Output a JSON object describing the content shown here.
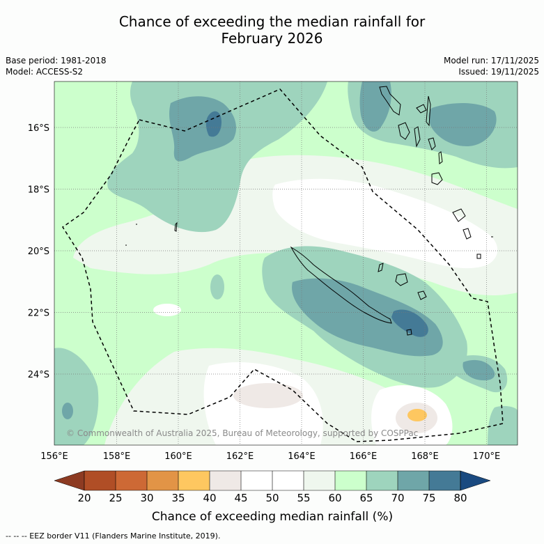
{
  "title": {
    "line1": "Chance of exceeding the median rainfall for",
    "line2": "February 2026"
  },
  "meta": {
    "base_period": "Base period: 1981-2018",
    "model": "Model: ACCESS-S2",
    "model_run": "Model run: 17/11/2025",
    "issued": "Issued: 19/11/2025"
  },
  "map": {
    "lon_labels": [
      "156°E",
      "158°E",
      "160°E",
      "162°E",
      "164°E",
      "166°E",
      "168°E",
      "170°E"
    ],
    "lat_labels": [
      "16°S",
      "18°S",
      "20°S",
      "22°S",
      "24°S"
    ],
    "credit": "© Commonwealth of Australia 2025, Bureau of Meteorology, supported by COSPPac",
    "colors": {
      "c45_50": "#ffffff",
      "c50_55": "#ffffff",
      "c55_60": "#eff7ee",
      "c60_65": "#ccffcc",
      "c65_70": "#9ed4bd",
      "c70_75": "#6fa6a8",
      "c75_80": "#447a96",
      "c40_45": "#efe9e6",
      "c35_40": "#fec760",
      "coast": "#000000",
      "eez": "#000000",
      "grid": "#777777"
    }
  },
  "colorbar": {
    "title": "Chance of exceeding median rainfall (%)",
    "labels": [
      "20",
      "25",
      "30",
      "35",
      "40",
      "45",
      "50",
      "55",
      "60",
      "65",
      "70",
      "75",
      "80"
    ],
    "low_extend_color": "#8d3b22",
    "high_extend_color": "#1a4a80",
    "colors": [
      "#b04e26",
      "#cd6935",
      "#e29446",
      "#fec760",
      "#efe9e6",
      "#ffffff",
      "#ffffff",
      "#eff7ee",
      "#ccffcc",
      "#9ed4bd",
      "#6fa6a8",
      "#447a96"
    ]
  },
  "footer": "--  --  -- EEZ border V11 (Flanders Marine Institute, 2019)."
}
